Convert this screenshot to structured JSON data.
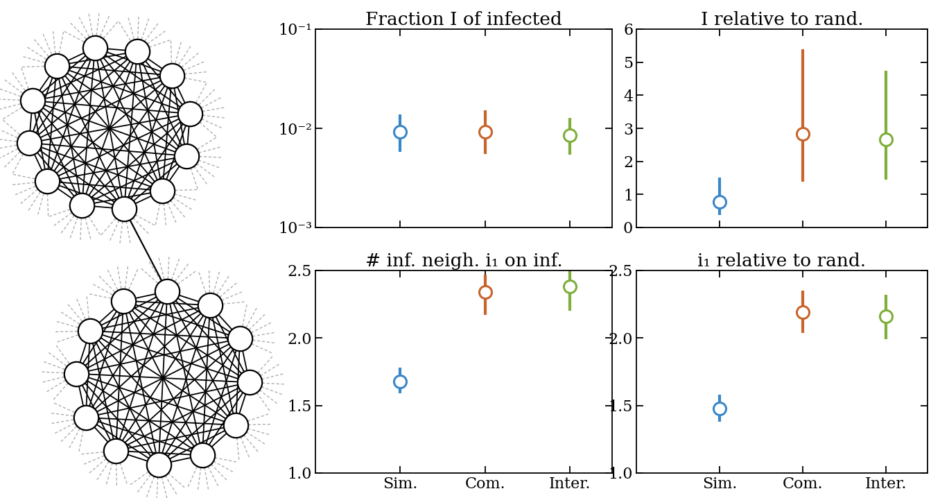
{
  "chart_data": [
    {
      "type": "scatter",
      "title": "Fraction I of infected",
      "categories": [
        "Sim.",
        "Com.",
        "Inter."
      ],
      "values": [
        0.0093,
        0.0093,
        0.0085
      ],
      "lower": [
        0.0058,
        0.0055,
        0.0054
      ],
      "upper": [
        0.0138,
        0.0152,
        0.0128
      ],
      "colors": [
        "#3a87c8",
        "#c8642c",
        "#7fae3a"
      ],
      "marker": "o",
      "log": "y",
      "ylim": [
        0.001,
        0.1
      ],
      "yticks": [
        {
          "value": 0.001,
          "label": "10⁻³"
        },
        {
          "value": 0.01,
          "label": "10⁻²"
        },
        {
          "value": 0.1,
          "label": "10⁻¹"
        }
      ],
      "tick_labels": "y"
    },
    {
      "type": "scatter",
      "title": "I relative to rand.",
      "categories": [
        "Sim.",
        "Com.",
        "Inter."
      ],
      "values": [
        0.78,
        2.83,
        2.66
      ],
      "lower": [
        0.38,
        1.38,
        1.45
      ],
      "upper": [
        1.51,
        5.4,
        4.75
      ],
      "colors": [
        "#3a87c8",
        "#c8642c",
        "#7fae3a"
      ],
      "marker": "o",
      "ylim": [
        0,
        6
      ],
      "yticks": [
        0,
        1,
        2,
        3,
        4,
        5,
        6
      ],
      "tick_labels": "y"
    },
    {
      "type": "scatter",
      "title": "# inf. neigh. i₁ on inf.",
      "categories": [
        "Sim.",
        "Com.",
        "Inter."
      ],
      "values": [
        1.68,
        2.34,
        2.38
      ],
      "lower": [
        1.59,
        2.17,
        2.2
      ],
      "upper": [
        1.78,
        2.47,
        2.52
      ],
      "colors": [
        "#3a87c8",
        "#c8642c",
        "#7fae3a"
      ],
      "marker": "o",
      "ylim": [
        1.0,
        2.5
      ],
      "yticks": [
        {
          "value": 1.0,
          "label": "1.0"
        },
        {
          "value": 1.5,
          "label": "1.5"
        },
        {
          "value": 2.0,
          "label": "2.0"
        },
        {
          "value": 2.5,
          "label": "2.5"
        }
      ]
    },
    {
      "type": "scatter",
      "title": "i₁ relative to rand.",
      "categories": [
        "Sim.",
        "Com.",
        "Inter."
      ],
      "values": [
        1.48,
        2.19,
        2.16
      ],
      "lower": [
        1.38,
        2.04,
        1.99
      ],
      "upper": [
        1.58,
        2.35,
        2.32
      ],
      "colors": [
        "#3a87c8",
        "#c8642c",
        "#7fae3a"
      ],
      "marker": "o",
      "ylim": [
        1.0,
        2.5
      ],
      "yticks": [
        {
          "value": 1.0,
          "label": "1.0"
        },
        {
          "value": 1.5,
          "label": "1.5"
        },
        {
          "value": 2.0,
          "label": "2.0"
        },
        {
          "value": 2.5,
          "label": "2.5"
        }
      ]
    }
  ]
}
